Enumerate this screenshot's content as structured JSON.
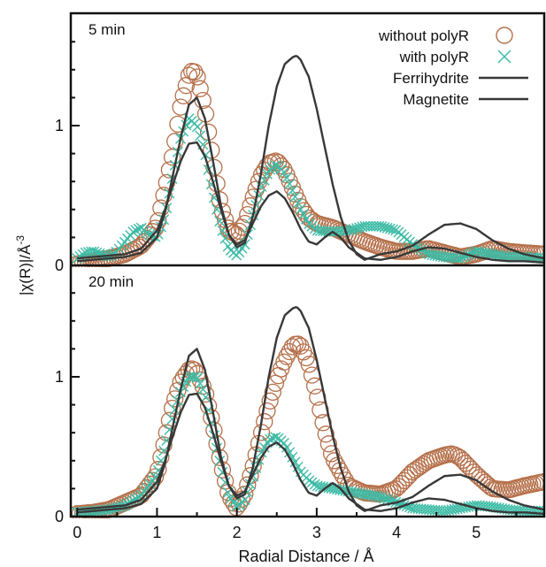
{
  "chart_data": {
    "type": "line",
    "xlabel": "Radial Distance / Å",
    "ylabel_main": "|χ(R)|/Å",
    "ylabel_sup": "-3",
    "xlim": [
      -0.08,
      5.85
    ],
    "x_ticks": [
      0,
      1,
      2,
      3,
      4,
      5
    ],
    "legend_placement": "top-right of upper panel",
    "colors": {
      "without_polyR": "#b5704a",
      "with_polyR": "#3dbba6",
      "ferrihydrite": "#383838",
      "magnetite": "#383838"
    },
    "legend": [
      {
        "label": "without polyR",
        "marker": "circle",
        "color": "#b5704a"
      },
      {
        "label": "with polyR",
        "marker": "x",
        "color": "#3dbba6"
      },
      {
        "label": "Ferrihydrite",
        "marker": "line",
        "color": "#383838"
      },
      {
        "label": "Magnetite",
        "marker": "line",
        "color": "#383838"
      }
    ],
    "panels": [
      {
        "label": "5 min",
        "ylim": [
          0,
          1.8
        ],
        "y_ticks": [
          0,
          1
        ],
        "series": [
          {
            "name": "without polyR",
            "style": "circle",
            "x": [
              0.0,
              0.2,
              0.4,
              0.6,
              0.8,
              1.0,
              1.2,
              1.3,
              1.4,
              1.45,
              1.5,
              1.6,
              1.7,
              1.8,
              1.9,
              2.0,
              2.1,
              2.2,
              2.3,
              2.4,
              2.5,
              2.6,
              2.7,
              2.8,
              2.9,
              3.0,
              3.2,
              3.4,
              3.6,
              3.8,
              4.0,
              4.2,
              4.4,
              4.6,
              4.8,
              5.0,
              5.2,
              5.4,
              5.6,
              5.85
            ],
            "y": [
              0.01,
              0.03,
              0.05,
              0.08,
              0.14,
              0.28,
              0.8,
              1.15,
              1.36,
              1.4,
              1.36,
              1.12,
              0.75,
              0.42,
              0.25,
              0.22,
              0.3,
              0.48,
              0.64,
              0.73,
              0.75,
              0.68,
              0.55,
              0.42,
              0.34,
              0.3,
              0.27,
              0.22,
              0.17,
              0.13,
              0.1,
              0.1,
              0.12,
              0.09,
              0.06,
              0.08,
              0.12,
              0.1,
              0.09,
              0.08
            ]
          },
          {
            "name": "with polyR",
            "style": "x",
            "x": [
              0.0,
              0.1,
              0.2,
              0.3,
              0.4,
              0.5,
              0.6,
              0.7,
              0.8,
              0.9,
              1.0,
              1.1,
              1.2,
              1.3,
              1.4,
              1.5,
              1.6,
              1.7,
              1.8,
              1.9,
              2.0,
              2.1,
              2.2,
              2.3,
              2.4,
              2.5,
              2.6,
              2.7,
              2.8,
              2.9,
              3.0,
              3.2,
              3.4,
              3.6,
              3.8,
              4.0,
              4.2,
              4.4,
              4.6,
              4.8,
              5.0,
              5.2,
              5.4,
              5.6,
              5.85
            ],
            "y": [
              0.05,
              0.09,
              0.1,
              0.08,
              0.06,
              0.1,
              0.17,
              0.24,
              0.27,
              0.22,
              0.2,
              0.35,
              0.65,
              0.92,
              1.05,
              1.0,
              0.82,
              0.52,
              0.28,
              0.12,
              0.07,
              0.15,
              0.35,
              0.55,
              0.68,
              0.72,
              0.66,
              0.53,
              0.4,
              0.3,
              0.25,
              0.24,
              0.25,
              0.28,
              0.28,
              0.25,
              0.15,
              0.08,
              0.06,
              0.05,
              0.1,
              0.08,
              0.06,
              0.06,
              0.05
            ]
          },
          {
            "name": "Ferrihydrite",
            "style": "line",
            "x": [
              0.0,
              0.2,
              0.4,
              0.6,
              0.8,
              1.0,
              1.1,
              1.2,
              1.3,
              1.4,
              1.5,
              1.6,
              1.7,
              1.8,
              1.9,
              2.0,
              2.1,
              2.2,
              2.3,
              2.4,
              2.5,
              2.6,
              2.7,
              2.8,
              2.9,
              3.0,
              3.1,
              3.2,
              3.3,
              3.4,
              3.6,
              3.8,
              4.0,
              4.2,
              4.4,
              4.6,
              4.8,
              5.0,
              5.2,
              5.4,
              5.6,
              5.85
            ],
            "y": [
              0.03,
              0.04,
              0.05,
              0.06,
              0.09,
              0.2,
              0.38,
              0.65,
              0.92,
              1.15,
              1.2,
              1.05,
              0.75,
              0.43,
              0.22,
              0.15,
              0.18,
              0.3,
              0.42,
              0.5,
              0.53,
              0.48,
              0.38,
              0.26,
              0.17,
              0.15,
              0.2,
              0.24,
              0.2,
              0.13,
              0.05,
              0.04,
              0.06,
              0.1,
              0.13,
              0.12,
              0.09,
              0.06,
              0.04,
              0.03,
              0.03,
              0.02
            ]
          },
          {
            "name": "Magnetite",
            "style": "line",
            "x": [
              0.0,
              0.2,
              0.4,
              0.6,
              0.8,
              1.0,
              1.1,
              1.2,
              1.3,
              1.4,
              1.5,
              1.6,
              1.7,
              1.8,
              1.9,
              2.0,
              2.1,
              2.2,
              2.3,
              2.4,
              2.5,
              2.6,
              2.7,
              2.75,
              2.8,
              2.9,
              3.0,
              3.1,
              3.2,
              3.3,
              3.4,
              3.5,
              3.6,
              3.7,
              3.8,
              4.0,
              4.2,
              4.4,
              4.6,
              4.8,
              5.0,
              5.2,
              5.4,
              5.6,
              5.85
            ],
            "y": [
              0.05,
              0.06,
              0.07,
              0.08,
              0.12,
              0.25,
              0.4,
              0.58,
              0.75,
              0.87,
              0.88,
              0.78,
              0.6,
              0.4,
              0.22,
              0.13,
              0.16,
              0.35,
              0.65,
              1.0,
              1.28,
              1.44,
              1.49,
              1.5,
              1.47,
              1.35,
              1.12,
              0.85,
              0.58,
              0.35,
              0.18,
              0.08,
              0.04,
              0.06,
              0.08,
              0.1,
              0.14,
              0.22,
              0.29,
              0.3,
              0.26,
              0.18,
              0.12,
              0.08,
              0.05
            ]
          }
        ]
      },
      {
        "label": "20 min",
        "ylim": [
          0,
          1.8
        ],
        "y_ticks": [
          0,
          1
        ],
        "series": [
          {
            "name": "without polyR",
            "style": "circle",
            "x": [
              0.0,
              0.2,
              0.4,
              0.6,
              0.8,
              1.0,
              1.2,
              1.3,
              1.4,
              1.45,
              1.5,
              1.6,
              1.7,
              1.8,
              1.9,
              2.0,
              2.1,
              2.2,
              2.3,
              2.4,
              2.5,
              2.6,
              2.7,
              2.75,
              2.8,
              2.9,
              3.0,
              3.1,
              3.2,
              3.4,
              3.6,
              3.8,
              4.0,
              4.2,
              4.4,
              4.6,
              4.7,
              4.8,
              5.0,
              5.2,
              5.4,
              5.6,
              5.85
            ],
            "y": [
              0.02,
              0.03,
              0.05,
              0.1,
              0.15,
              0.3,
              0.8,
              0.97,
              1.05,
              1.06,
              1.03,
              0.9,
              0.66,
              0.38,
              0.15,
              0.06,
              0.16,
              0.35,
              0.58,
              0.8,
              0.98,
              1.12,
              1.22,
              1.24,
              1.22,
              1.1,
              0.88,
              0.62,
              0.42,
              0.22,
              0.17,
              0.16,
              0.2,
              0.32,
              0.4,
              0.44,
              0.45,
              0.42,
              0.3,
              0.2,
              0.19,
              0.22,
              0.25
            ]
          },
          {
            "name": "with polyR",
            "style": "x",
            "x": [
              0.0,
              0.2,
              0.4,
              0.6,
              0.8,
              1.0,
              1.1,
              1.2,
              1.3,
              1.4,
              1.5,
              1.6,
              1.7,
              1.8,
              1.9,
              2.0,
              2.1,
              2.2,
              2.3,
              2.4,
              2.5,
              2.6,
              2.7,
              2.8,
              2.9,
              3.0,
              3.2,
              3.4,
              3.6,
              3.8,
              4.0,
              4.2,
              4.4,
              4.6,
              4.8,
              5.0,
              5.2,
              5.4,
              5.6,
              5.85
            ],
            "y": [
              0.03,
              0.04,
              0.05,
              0.08,
              0.15,
              0.3,
              0.5,
              0.72,
              0.9,
              1.0,
              1.0,
              0.88,
              0.62,
              0.36,
              0.15,
              0.07,
              0.12,
              0.28,
              0.45,
              0.55,
              0.57,
              0.52,
              0.42,
              0.32,
              0.26,
              0.22,
              0.2,
              0.18,
              0.16,
              0.14,
              0.1,
              0.06,
              0.05,
              0.04,
              0.06,
              0.08,
              0.07,
              0.05,
              0.04,
              0.04
            ]
          },
          {
            "name": "Ferrihydrite",
            "style": "line",
            "x": [
              0.0,
              0.2,
              0.4,
              0.6,
              0.8,
              1.0,
              1.1,
              1.2,
              1.3,
              1.4,
              1.5,
              1.6,
              1.7,
              1.8,
              1.9,
              2.0,
              2.1,
              2.2,
              2.3,
              2.4,
              2.5,
              2.6,
              2.7,
              2.8,
              2.9,
              3.0,
              3.1,
              3.2,
              3.3,
              3.4,
              3.6,
              3.8,
              4.0,
              4.2,
              4.4,
              4.6,
              4.8,
              5.0,
              5.2,
              5.4,
              5.6,
              5.85
            ],
            "y": [
              0.03,
              0.04,
              0.05,
              0.06,
              0.09,
              0.2,
              0.38,
              0.65,
              0.92,
              1.15,
              1.2,
              1.05,
              0.75,
              0.43,
              0.22,
              0.15,
              0.18,
              0.3,
              0.42,
              0.5,
              0.53,
              0.48,
              0.38,
              0.26,
              0.17,
              0.15,
              0.2,
              0.24,
              0.2,
              0.13,
              0.05,
              0.04,
              0.06,
              0.1,
              0.13,
              0.12,
              0.09,
              0.06,
              0.04,
              0.03,
              0.03,
              0.02
            ]
          },
          {
            "name": "Magnetite",
            "style": "line",
            "x": [
              0.0,
              0.2,
              0.4,
              0.6,
              0.8,
              1.0,
              1.1,
              1.2,
              1.3,
              1.4,
              1.5,
              1.6,
              1.7,
              1.8,
              1.9,
              2.0,
              2.1,
              2.2,
              2.3,
              2.4,
              2.5,
              2.6,
              2.7,
              2.75,
              2.8,
              2.9,
              3.0,
              3.1,
              3.2,
              3.3,
              3.4,
              3.5,
              3.6,
              3.7,
              3.8,
              4.0,
              4.2,
              4.4,
              4.6,
              4.8,
              5.0,
              5.2,
              5.4,
              5.6,
              5.85
            ],
            "y": [
              0.05,
              0.06,
              0.07,
              0.08,
              0.12,
              0.25,
              0.4,
              0.58,
              0.75,
              0.87,
              0.88,
              0.78,
              0.6,
              0.4,
              0.22,
              0.13,
              0.16,
              0.35,
              0.65,
              1.0,
              1.28,
              1.44,
              1.49,
              1.5,
              1.47,
              1.35,
              1.12,
              0.85,
              0.58,
              0.35,
              0.18,
              0.08,
              0.04,
              0.06,
              0.08,
              0.1,
              0.14,
              0.22,
              0.29,
              0.3,
              0.26,
              0.18,
              0.12,
              0.08,
              0.05
            ]
          }
        ]
      }
    ]
  }
}
